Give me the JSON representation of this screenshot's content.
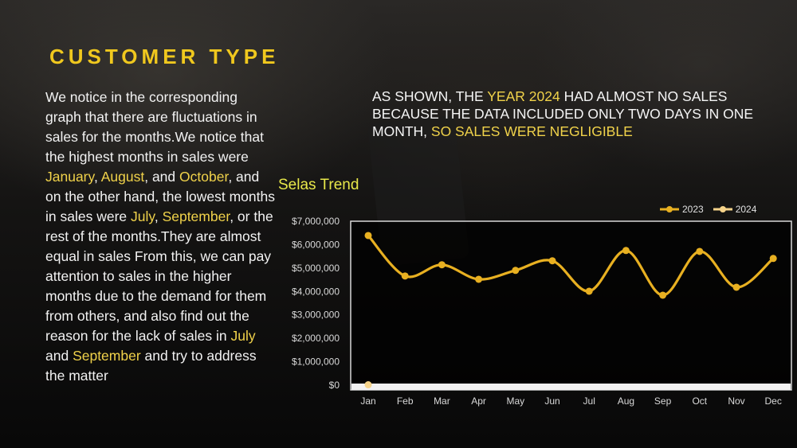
{
  "slide": {
    "title": "CUSTOMER TYPE",
    "paragraph": [
      {
        "text": "We notice in the corresponding graph that there are fluctuations in sales for the months.We notice that the highest months in sales were ",
        "hl": false
      },
      {
        "text": "January",
        "hl": true
      },
      {
        "text": ", ",
        "hl": false
      },
      {
        "text": "August",
        "hl": true
      },
      {
        "text": ", and ",
        "hl": false
      },
      {
        "text": "October",
        "hl": true
      },
      {
        "text": ", and on the other hand, the lowest months in sales were ",
        "hl": false
      },
      {
        "text": "July",
        "hl": true
      },
      {
        "text": ", ",
        "hl": false
      },
      {
        "text": "September",
        "hl": true
      },
      {
        "text": ", or the rest of the months.They are almost equal in sales From this, we can pay attention to sales in the higher months due to the demand for them from others, and also find out the reason for the lack of sales in ",
        "hl": false
      },
      {
        "text": "July",
        "hl": true
      },
      {
        "text": " and ",
        "hl": false
      },
      {
        "text": "September",
        "hl": true
      },
      {
        "text": " and try to address the matter",
        "hl": false
      }
    ],
    "note": [
      {
        "text": "AS SHOWN, THE ",
        "hl": false
      },
      {
        "text": "YEAR 2024",
        "hl": true
      },
      {
        "text": " HAD ALMOST NO SALES BECAUSE THE DATA INCLUDED ONLY TWO DAYS IN ONE MONTH, ",
        "hl": false
      },
      {
        "text": "SO SALES WERE NEGLIGIBLE",
        "hl": true
      }
    ]
  },
  "colors": {
    "title": "#f0c81e",
    "highlight": "#f0d24a",
    "series_2023": "#e8b021",
    "series_2024": "#f5d38a",
    "chart_title": "#e8e84a"
  },
  "chart_data": {
    "type": "line",
    "title": "Selas Trend",
    "xlabel": "",
    "ylabel": "",
    "categories": [
      "Jan",
      "Feb",
      "Mar",
      "Apr",
      "May",
      "Jun",
      "Jul",
      "Aug",
      "Sep",
      "Oct",
      "Nov",
      "Dec"
    ],
    "series": [
      {
        "name": "2023",
        "values": [
          6390000,
          4660000,
          5140000,
          4520000,
          4900000,
          5310000,
          4010000,
          5750000,
          3840000,
          5710000,
          4180000,
          5410000
        ]
      },
      {
        "name": "2024",
        "values": [
          15000,
          null,
          null,
          null,
          null,
          null,
          null,
          null,
          null,
          null,
          null,
          null
        ]
      }
    ],
    "yticks": [
      "$0",
      "$1,000,000",
      "$2,000,000",
      "$3,000,000",
      "$4,000,000",
      "$5,000,000",
      "$6,000,000",
      "$7,000,000"
    ],
    "ylim": [
      0,
      7000000
    ],
    "grid": false,
    "legend_position": "top-right",
    "smooth": true
  }
}
